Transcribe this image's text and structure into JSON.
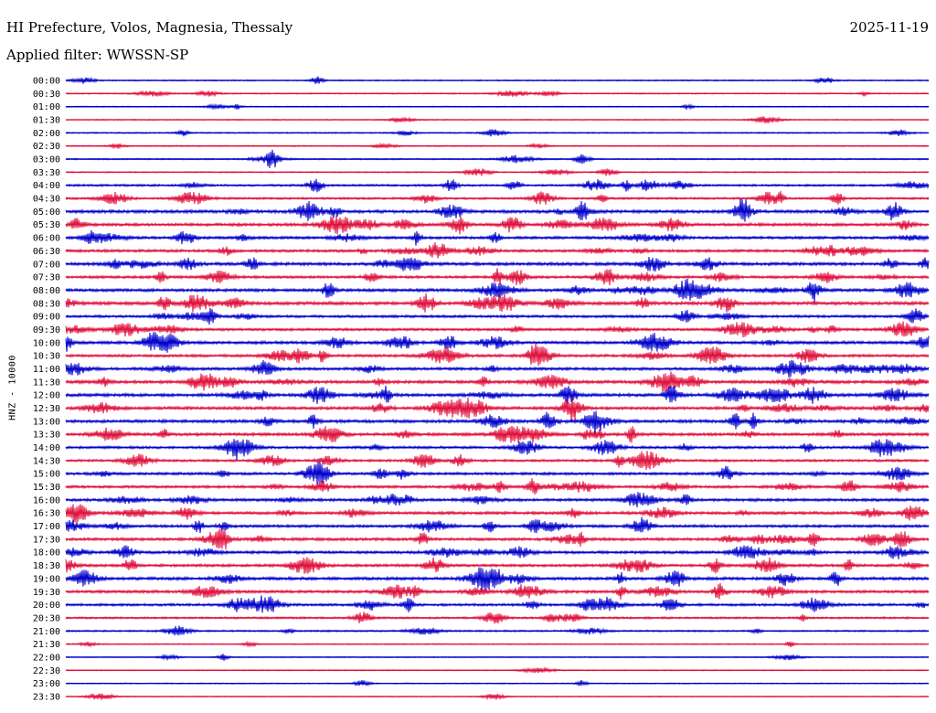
{
  "header": {
    "title": "HI Prefecture, Volos, Magnesia, Thessaly",
    "date": "2025-11-19",
    "filter": "Applied filter: WWSSN-SP"
  },
  "chart_data": {
    "type": "line",
    "ylabel": "HNZ - 10000",
    "colors": {
      "even_row": "#0000cc",
      "odd_row": "#e0103c"
    },
    "rows": [
      {
        "label": "00:00",
        "activity": 0.15
      },
      {
        "label": "00:30",
        "activity": 0.15
      },
      {
        "label": "01:00",
        "activity": 0.08
      },
      {
        "label": "01:30",
        "activity": 0.08
      },
      {
        "label": "02:00",
        "activity": 0.18
      },
      {
        "label": "02:30",
        "activity": 0.12
      },
      {
        "label": "03:00",
        "activity": 0.22
      },
      {
        "label": "03:30",
        "activity": 0.15
      },
      {
        "label": "04:00",
        "activity": 0.45
      },
      {
        "label": "04:30",
        "activity": 0.45
      },
      {
        "label": "05:00",
        "activity": 0.8
      },
      {
        "label": "05:30",
        "activity": 0.75
      },
      {
        "label": "06:00",
        "activity": 0.65
      },
      {
        "label": "06:30",
        "activity": 0.65
      },
      {
        "label": "07:00",
        "activity": 0.8
      },
      {
        "label": "07:30",
        "activity": 0.65
      },
      {
        "label": "08:00",
        "activity": 0.75
      },
      {
        "label": "08:30",
        "activity": 0.85
      },
      {
        "label": "09:00",
        "activity": 0.6
      },
      {
        "label": "09:30",
        "activity": 0.6
      },
      {
        "label": "10:00",
        "activity": 0.75
      },
      {
        "label": "10:30",
        "activity": 0.65
      },
      {
        "label": "11:00",
        "activity": 0.7
      },
      {
        "label": "11:30",
        "activity": 0.8
      },
      {
        "label": "12:00",
        "activity": 0.8
      },
      {
        "label": "12:30",
        "activity": 0.75
      },
      {
        "label": "13:00",
        "activity": 0.8
      },
      {
        "label": "13:30",
        "activity": 0.75
      },
      {
        "label": "14:00",
        "activity": 0.6
      },
      {
        "label": "14:30",
        "activity": 0.55
      },
      {
        "label": "15:00",
        "activity": 0.65
      },
      {
        "label": "15:30",
        "activity": 0.6
      },
      {
        "label": "16:00",
        "activity": 0.7
      },
      {
        "label": "16:30",
        "activity": 0.7
      },
      {
        "label": "17:00",
        "activity": 0.65
      },
      {
        "label": "17:30",
        "activity": 0.7
      },
      {
        "label": "18:00",
        "activity": 0.7
      },
      {
        "label": "18:30",
        "activity": 0.65
      },
      {
        "label": "19:00",
        "activity": 0.75
      },
      {
        "label": "19:30",
        "activity": 0.7
      },
      {
        "label": "20:00",
        "activity": 0.6
      },
      {
        "label": "20:30",
        "activity": 0.4
      },
      {
        "label": "21:00",
        "activity": 0.3
      },
      {
        "label": "21:30",
        "activity": 0.1
      },
      {
        "label": "22:00",
        "activity": 0.06
      },
      {
        "label": "22:30",
        "activity": 0.06
      },
      {
        "label": "23:00",
        "activity": 0.08
      },
      {
        "label": "23:30",
        "activity": 0.06
      }
    ]
  }
}
